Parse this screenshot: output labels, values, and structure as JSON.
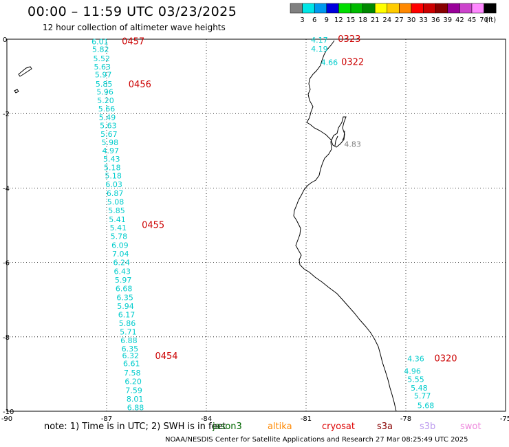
{
  "header": {
    "title": "00:00 – 11:59 UTC 03/23/2025",
    "subtitle": "12 hour collection of altimeter wave heights"
  },
  "colorbar": {
    "unit": "(ft)",
    "bins": [
      {
        "color": "#808080",
        "label": "3"
      },
      {
        "color": "#00e5e5",
        "label": "6"
      },
      {
        "color": "#0099ee",
        "label": "9"
      },
      {
        "color": "#0000dd",
        "label": "12"
      },
      {
        "color": "#00dd00",
        "label": "15"
      },
      {
        "color": "#00bb00",
        "label": "18"
      },
      {
        "color": "#008800",
        "label": "21"
      },
      {
        "color": "#ffff00",
        "label": "24"
      },
      {
        "color": "#ffcc00",
        "label": "27"
      },
      {
        "color": "#ff8800",
        "label": "30"
      },
      {
        "color": "#ff0000",
        "label": "33"
      },
      {
        "color": "#cc0000",
        "label": "36"
      },
      {
        "color": "#880000",
        "label": "39"
      },
      {
        "color": "#990099",
        "label": "42"
      },
      {
        "color": "#cc44cc",
        "label": "45"
      },
      {
        "color": "#ff88ff",
        "label": "70"
      },
      {
        "color": "#000000",
        "label": ""
      }
    ]
  },
  "axes": {
    "lon_ticks": [
      "-90",
      "-87",
      "-84",
      "-81",
      "-78",
      "-75"
    ],
    "lat_ticks": [
      "0",
      "-2",
      "-4",
      "-6",
      "-8",
      "-10"
    ]
  },
  "chart_data": {
    "type": "scatter",
    "xlim": [
      -90,
      -75
    ],
    "ylim": [
      -10,
      0
    ],
    "tracks": [
      {
        "color": "#00cccc",
        "points": [
          {
            "lon": -87.2,
            "lat": -0.05,
            "swh": "6.01"
          },
          {
            "lon": -87.18,
            "lat": -0.25,
            "swh": "5.82"
          },
          {
            "lon": -87.15,
            "lat": -0.5,
            "swh": "5.52"
          },
          {
            "lon": -87.13,
            "lat": -0.72,
            "swh": "5.63"
          },
          {
            "lon": -87.1,
            "lat": -0.93,
            "swh": "5.97"
          },
          {
            "lon": -87.08,
            "lat": -1.18,
            "swh": "5.85"
          },
          {
            "lon": -87.05,
            "lat": -1.4,
            "swh": "5.96"
          },
          {
            "lon": -87.03,
            "lat": -1.63,
            "swh": "5.20"
          },
          {
            "lon": -87.0,
            "lat": -1.85,
            "swh": "5.66"
          },
          {
            "lon": -86.98,
            "lat": -2.08,
            "swh": "5.49"
          },
          {
            "lon": -86.95,
            "lat": -2.3,
            "swh": "5.63"
          },
          {
            "lon": -86.93,
            "lat": -2.53,
            "swh": "5.67"
          },
          {
            "lon": -86.9,
            "lat": -2.75,
            "swh": "5.98"
          },
          {
            "lon": -86.88,
            "lat": -2.98,
            "swh": "4.97"
          },
          {
            "lon": -86.85,
            "lat": -3.2,
            "swh": "5.43"
          },
          {
            "lon": -86.83,
            "lat": -3.43,
            "swh": "5.18"
          },
          {
            "lon": -86.8,
            "lat": -3.65,
            "swh": "5.18"
          },
          {
            "lon": -86.78,
            "lat": -3.88,
            "swh": "6.03"
          },
          {
            "lon": -86.75,
            "lat": -4.12,
            "swh": "6.87"
          },
          {
            "lon": -86.73,
            "lat": -4.35,
            "swh": "5.08"
          },
          {
            "lon": -86.7,
            "lat": -4.58,
            "swh": "5.85"
          },
          {
            "lon": -86.68,
            "lat": -4.82,
            "swh": "5.41"
          },
          {
            "lon": -86.65,
            "lat": -5.05,
            "swh": "5.41"
          },
          {
            "lon": -86.63,
            "lat": -5.28,
            "swh": "5.78"
          },
          {
            "lon": -86.6,
            "lat": -5.52,
            "swh": "6.09"
          },
          {
            "lon": -86.58,
            "lat": -5.75,
            "swh": "7.04"
          },
          {
            "lon": -86.55,
            "lat": -5.98,
            "swh": "6.24"
          },
          {
            "lon": -86.53,
            "lat": -6.22,
            "swh": "6.43"
          },
          {
            "lon": -86.5,
            "lat": -6.45,
            "swh": "5.97"
          },
          {
            "lon": -86.48,
            "lat": -6.68,
            "swh": "6.68"
          },
          {
            "lon": -86.45,
            "lat": -6.92,
            "swh": "6.35"
          },
          {
            "lon": -86.43,
            "lat": -7.15,
            "swh": "5.94"
          },
          {
            "lon": -86.4,
            "lat": -7.38,
            "swh": "6.17"
          },
          {
            "lon": -86.38,
            "lat": -7.62,
            "swh": "5.86"
          },
          {
            "lon": -86.35,
            "lat": -7.85,
            "swh": "5.71"
          },
          {
            "lon": -86.33,
            "lat": -8.08,
            "swh": "6.88"
          },
          {
            "lon": -86.3,
            "lat": -8.3,
            "swh": "6.35"
          },
          {
            "lon": -86.28,
            "lat": -8.48,
            "swh": "6.32"
          },
          {
            "lon": -86.25,
            "lat": -8.7,
            "swh": "6.61"
          },
          {
            "lon": -86.23,
            "lat": -8.95,
            "swh": "7.58"
          },
          {
            "lon": -86.2,
            "lat": -9.18,
            "swh": "6.20"
          },
          {
            "lon": -86.18,
            "lat": -9.42,
            "swh": "7.59"
          },
          {
            "lon": -86.15,
            "lat": -9.65,
            "swh": "8.01"
          },
          {
            "lon": -86.13,
            "lat": -9.88,
            "swh": "6.88"
          }
        ],
        "times": [
          {
            "label": "0457",
            "lon": -86.2,
            "lat": -0.05
          },
          {
            "label": "0456",
            "lon": -86.0,
            "lat": -1.2
          },
          {
            "label": "0455",
            "lon": -85.6,
            "lat": -4.98
          },
          {
            "label": "0454",
            "lon": -85.2,
            "lat": -8.5
          }
        ]
      },
      {
        "color": "#00cccc",
        "points": [
          {
            "lon": -80.6,
            "lat": 0.0,
            "swh": "4.17"
          },
          {
            "lon": -80.6,
            "lat": -0.24,
            "swh": "4.19"
          },
          {
            "lon": -80.3,
            "lat": -0.6,
            "swh": "4.66"
          }
        ],
        "times": [
          {
            "label": "0323",
            "lon": -79.7,
            "lat": 0.02
          },
          {
            "label": "0322",
            "lon": -79.6,
            "lat": -0.6
          }
        ]
      },
      {
        "color": "#808080",
        "points": [
          {
            "lon": -79.6,
            "lat": -2.8,
            "swh": "4.83"
          }
        ],
        "times": []
      },
      {
        "color": "#00cccc",
        "points": [
          {
            "lon": -77.7,
            "lat": -8.57,
            "swh": "4.36"
          },
          {
            "lon": -77.8,
            "lat": -8.9,
            "swh": "4.96"
          },
          {
            "lon": -77.7,
            "lat": -9.12,
            "swh": "5.55"
          },
          {
            "lon": -77.6,
            "lat": -9.35,
            "swh": "5.48"
          },
          {
            "lon": -77.5,
            "lat": -9.57,
            "swh": "5.77"
          },
          {
            "lon": -77.4,
            "lat": -9.82,
            "swh": "5.68"
          }
        ],
        "times": [
          {
            "label": "0320",
            "lon": -76.8,
            "lat": -8.57
          }
        ]
      }
    ]
  },
  "footer": {
    "note": "note: 1) Time is in UTC; 2) SWH is in feet",
    "credit": "NOAA/NESDIS Center for Satellite Applications and Research   27 Mar 08:25:49 UTC 2025",
    "satellites": [
      {
        "name": "jason3",
        "color": "#006600"
      },
      {
        "name": "altika",
        "color": "#ff8800"
      },
      {
        "name": "cryosat",
        "color": "#dd0000"
      },
      {
        "name": "s3a",
        "color": "#880000"
      },
      {
        "name": "s3b",
        "color": "#bb99ee"
      },
      {
        "name": "swot",
        "color": "#ee88dd"
      }
    ]
  }
}
